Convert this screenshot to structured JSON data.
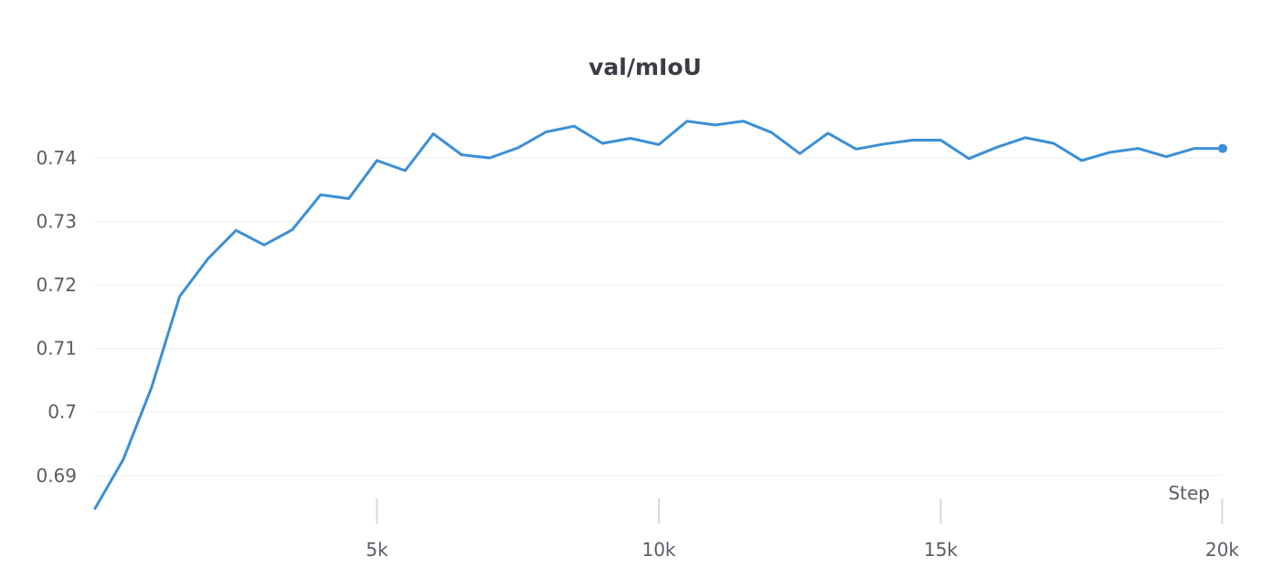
{
  "chart_data": {
    "type": "line",
    "title": "val/mIoU",
    "xlabel": "Step",
    "ylabel": "",
    "xlim": [
      0,
      20000
    ],
    "ylim": [
      0.6845,
      0.7505
    ],
    "yticks": [
      0.69,
      0.7,
      0.71,
      0.72,
      0.73,
      0.74
    ],
    "ytick_labels": [
      "0.69",
      "0.7",
      "0.71",
      "0.72",
      "0.73",
      "0.74"
    ],
    "xticks": [
      5000,
      10000,
      15000,
      20000
    ],
    "xtick_labels": [
      "5k",
      "10k",
      "15k",
      "20k"
    ],
    "grid": true,
    "legend": "none",
    "color": "#3b8fd6",
    "series": [
      {
        "x": [
          0,
          500,
          1000,
          1500,
          2000,
          2500,
          3000,
          3500,
          4000,
          4500,
          5000,
          5500,
          6000,
          6500,
          7000,
          7500,
          8000,
          8500,
          9000,
          9500,
          10000,
          10500,
          11000,
          11500,
          12000,
          12500,
          13000,
          13500,
          14000,
          14500,
          15000,
          15500,
          16000,
          16500,
          17000,
          17500,
          18000,
          18500,
          19000,
          19500,
          20000
        ],
        "values": [
          0.6848,
          0.6925,
          0.7038,
          0.7182,
          0.7241,
          0.7286,
          0.7263,
          0.7287,
          0.7342,
          0.7336,
          0.7396,
          0.738,
          0.7438,
          0.7405,
          0.74,
          0.7416,
          0.7441,
          0.745,
          0.7423,
          0.7431,
          0.7421,
          0.7458,
          0.7452,
          0.7458,
          0.744,
          0.7407,
          0.7439,
          0.7414,
          0.7422,
          0.7428,
          0.7428,
          0.7399,
          0.7417,
          0.7432,
          0.7423,
          0.7396,
          0.7409,
          0.7415,
          0.7402,
          0.7415,
          0.7415
        ]
      }
    ]
  }
}
